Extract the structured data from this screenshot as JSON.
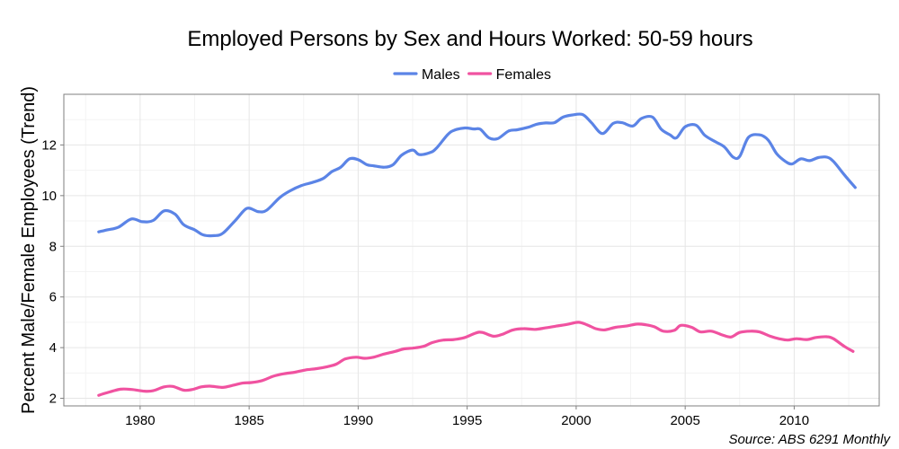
{
  "chart_data": {
    "type": "line",
    "title": "Employed Persons by Sex and Hours Worked: 50-59 hours",
    "xlabel": "",
    "ylabel": "Percent Male/Female Employees (Trend)",
    "xlim": [
      1976.5,
      2013.9
    ],
    "ylim": [
      1.7,
      14.0
    ],
    "x_ticks": [
      1980,
      1985,
      1990,
      1995,
      2000,
      2005,
      2010
    ],
    "y_ticks": [
      2,
      4,
      6,
      8,
      10,
      12
    ],
    "grid": true,
    "legend_position": "top",
    "source": "Source: ABS 6291 Monthly",
    "series": [
      {
        "name": "Males",
        "color": "#5b84e6",
        "points": [
          [
            1978.1,
            8.57
          ],
          [
            1978.5,
            8.65
          ],
          [
            1979.0,
            8.75
          ],
          [
            1979.6,
            9.08
          ],
          [
            1980.1,
            8.97
          ],
          [
            1980.6,
            9.02
          ],
          [
            1981.1,
            9.4
          ],
          [
            1981.6,
            9.27
          ],
          [
            1982.0,
            8.85
          ],
          [
            1982.5,
            8.65
          ],
          [
            1982.9,
            8.45
          ],
          [
            1983.4,
            8.42
          ],
          [
            1983.8,
            8.52
          ],
          [
            1984.4,
            9.05
          ],
          [
            1984.9,
            9.5
          ],
          [
            1985.4,
            9.37
          ],
          [
            1985.8,
            9.42
          ],
          [
            1986.4,
            9.92
          ],
          [
            1986.9,
            10.2
          ],
          [
            1987.4,
            10.4
          ],
          [
            1987.9,
            10.52
          ],
          [
            1988.4,
            10.68
          ],
          [
            1988.8,
            10.95
          ],
          [
            1989.2,
            11.12
          ],
          [
            1989.6,
            11.45
          ],
          [
            1990.0,
            11.42
          ],
          [
            1990.4,
            11.22
          ],
          [
            1990.7,
            11.18
          ],
          [
            1991.2,
            11.12
          ],
          [
            1991.6,
            11.22
          ],
          [
            1992.0,
            11.6
          ],
          [
            1992.5,
            11.8
          ],
          [
            1992.8,
            11.62
          ],
          [
            1993.3,
            11.7
          ],
          [
            1993.6,
            11.88
          ],
          [
            1994.1,
            12.4
          ],
          [
            1994.4,
            12.58
          ],
          [
            1994.9,
            12.67
          ],
          [
            1995.3,
            12.63
          ],
          [
            1995.6,
            12.62
          ],
          [
            1996.0,
            12.28
          ],
          [
            1996.4,
            12.25
          ],
          [
            1996.9,
            12.55
          ],
          [
            1997.3,
            12.6
          ],
          [
            1997.8,
            12.7
          ],
          [
            1998.2,
            12.82
          ],
          [
            1998.6,
            12.87
          ],
          [
            1999.0,
            12.88
          ],
          [
            1999.4,
            13.1
          ],
          [
            1999.8,
            13.18
          ],
          [
            2000.3,
            13.2
          ],
          [
            2000.7,
            12.88
          ],
          [
            2001.2,
            12.45
          ],
          [
            2001.7,
            12.85
          ],
          [
            2002.1,
            12.88
          ],
          [
            2002.6,
            12.75
          ],
          [
            2003.0,
            13.05
          ],
          [
            2003.5,
            13.1
          ],
          [
            2003.9,
            12.62
          ],
          [
            2004.3,
            12.4
          ],
          [
            2004.6,
            12.28
          ],
          [
            2005.0,
            12.72
          ],
          [
            2005.5,
            12.78
          ],
          [
            2005.9,
            12.38
          ],
          [
            2006.4,
            12.12
          ],
          [
            2006.8,
            11.92
          ],
          [
            2007.2,
            11.52
          ],
          [
            2007.5,
            11.55
          ],
          [
            2007.9,
            12.3
          ],
          [
            2008.4,
            12.4
          ],
          [
            2008.8,
            12.2
          ],
          [
            2009.2,
            11.65
          ],
          [
            2009.6,
            11.35
          ],
          [
            2009.9,
            11.25
          ],
          [
            2010.3,
            11.45
          ],
          [
            2010.7,
            11.38
          ],
          [
            2011.1,
            11.5
          ],
          [
            2011.5,
            11.52
          ],
          [
            2011.8,
            11.35
          ],
          [
            2012.3,
            10.82
          ],
          [
            2012.8,
            10.32
          ]
        ]
      },
      {
        "name": "Females",
        "color": "#f052a0",
        "points": [
          [
            1978.1,
            2.12
          ],
          [
            1978.6,
            2.25
          ],
          [
            1979.1,
            2.36
          ],
          [
            1979.6,
            2.35
          ],
          [
            1980.2,
            2.28
          ],
          [
            1980.6,
            2.3
          ],
          [
            1981.1,
            2.45
          ],
          [
            1981.5,
            2.47
          ],
          [
            1982.0,
            2.32
          ],
          [
            1982.4,
            2.35
          ],
          [
            1982.8,
            2.45
          ],
          [
            1983.2,
            2.48
          ],
          [
            1983.8,
            2.43
          ],
          [
            1984.2,
            2.5
          ],
          [
            1984.7,
            2.6
          ],
          [
            1985.1,
            2.62
          ],
          [
            1985.6,
            2.7
          ],
          [
            1986.1,
            2.87
          ],
          [
            1986.6,
            2.97
          ],
          [
            1987.1,
            3.03
          ],
          [
            1987.6,
            3.12
          ],
          [
            1988.1,
            3.17
          ],
          [
            1988.6,
            3.25
          ],
          [
            1989.0,
            3.35
          ],
          [
            1989.4,
            3.55
          ],
          [
            1989.9,
            3.62
          ],
          [
            1990.3,
            3.58
          ],
          [
            1990.7,
            3.62
          ],
          [
            1991.2,
            3.75
          ],
          [
            1991.7,
            3.85
          ],
          [
            1992.1,
            3.95
          ],
          [
            1992.5,
            3.98
          ],
          [
            1993.0,
            4.05
          ],
          [
            1993.4,
            4.2
          ],
          [
            1993.9,
            4.3
          ],
          [
            1994.4,
            4.32
          ],
          [
            1994.9,
            4.4
          ],
          [
            1995.4,
            4.58
          ],
          [
            1995.7,
            4.6
          ],
          [
            1996.2,
            4.45
          ],
          [
            1996.6,
            4.52
          ],
          [
            1997.1,
            4.7
          ],
          [
            1997.6,
            4.75
          ],
          [
            1998.1,
            4.72
          ],
          [
            1998.6,
            4.78
          ],
          [
            1999.1,
            4.85
          ],
          [
            1999.6,
            4.92
          ],
          [
            2000.1,
            5.0
          ],
          [
            2000.5,
            4.9
          ],
          [
            2000.9,
            4.75
          ],
          [
            2001.3,
            4.7
          ],
          [
            2001.8,
            4.8
          ],
          [
            2002.3,
            4.85
          ],
          [
            2002.8,
            4.93
          ],
          [
            2003.2,
            4.9
          ],
          [
            2003.6,
            4.82
          ],
          [
            2004.0,
            4.65
          ],
          [
            2004.5,
            4.68
          ],
          [
            2004.8,
            4.88
          ],
          [
            2005.3,
            4.8
          ],
          [
            2005.7,
            4.62
          ],
          [
            2006.2,
            4.65
          ],
          [
            2006.7,
            4.5
          ],
          [
            2007.1,
            4.42
          ],
          [
            2007.5,
            4.6
          ],
          [
            2008.0,
            4.65
          ],
          [
            2008.4,
            4.62
          ],
          [
            2008.9,
            4.45
          ],
          [
            2009.3,
            4.35
          ],
          [
            2009.7,
            4.3
          ],
          [
            2010.1,
            4.35
          ],
          [
            2010.6,
            4.32
          ],
          [
            2011.0,
            4.4
          ],
          [
            2011.5,
            4.43
          ],
          [
            2011.8,
            4.35
          ],
          [
            2012.3,
            4.05
          ],
          [
            2012.7,
            3.85
          ]
        ]
      }
    ]
  }
}
